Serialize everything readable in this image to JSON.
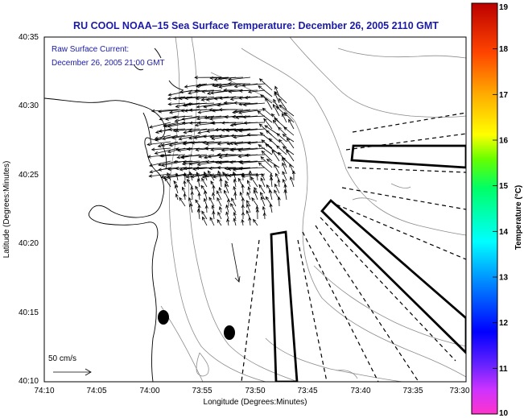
{
  "title": "RU COOL   NOAA–15  Sea Surface Temperature:  December 26, 2005 2110 GMT",
  "current_label_line1": "Raw Surface Current:",
  "current_label_line2": "December 26, 2005 21:00 GMT",
  "scale_label": "50 cm/s",
  "xlabel": "Longitude (Degrees:Minutes)",
  "ylabel": "Latitude (Degrees:Minutes)",
  "x_ticks": [
    "74:10",
    "74:05",
    "74:00",
    "73:55",
    "73:50",
    "73:45",
    "73:40",
    "73:35",
    "73:30"
  ],
  "y_ticks": [
    "40:35",
    "40:30",
    "40:25",
    "40:20",
    "40:15",
    "40:10"
  ],
  "colorbar": {
    "label": "Temperature (°C)",
    "min": 10,
    "max": 19,
    "ticks": [
      "19",
      "18",
      "17",
      "16",
      "15",
      "14",
      "13",
      "12",
      "11",
      "10"
    ]
  },
  "colors": {
    "title": "#1a1aa6",
    "coast": "#000000",
    "contour": "#8c8c8c"
  }
}
